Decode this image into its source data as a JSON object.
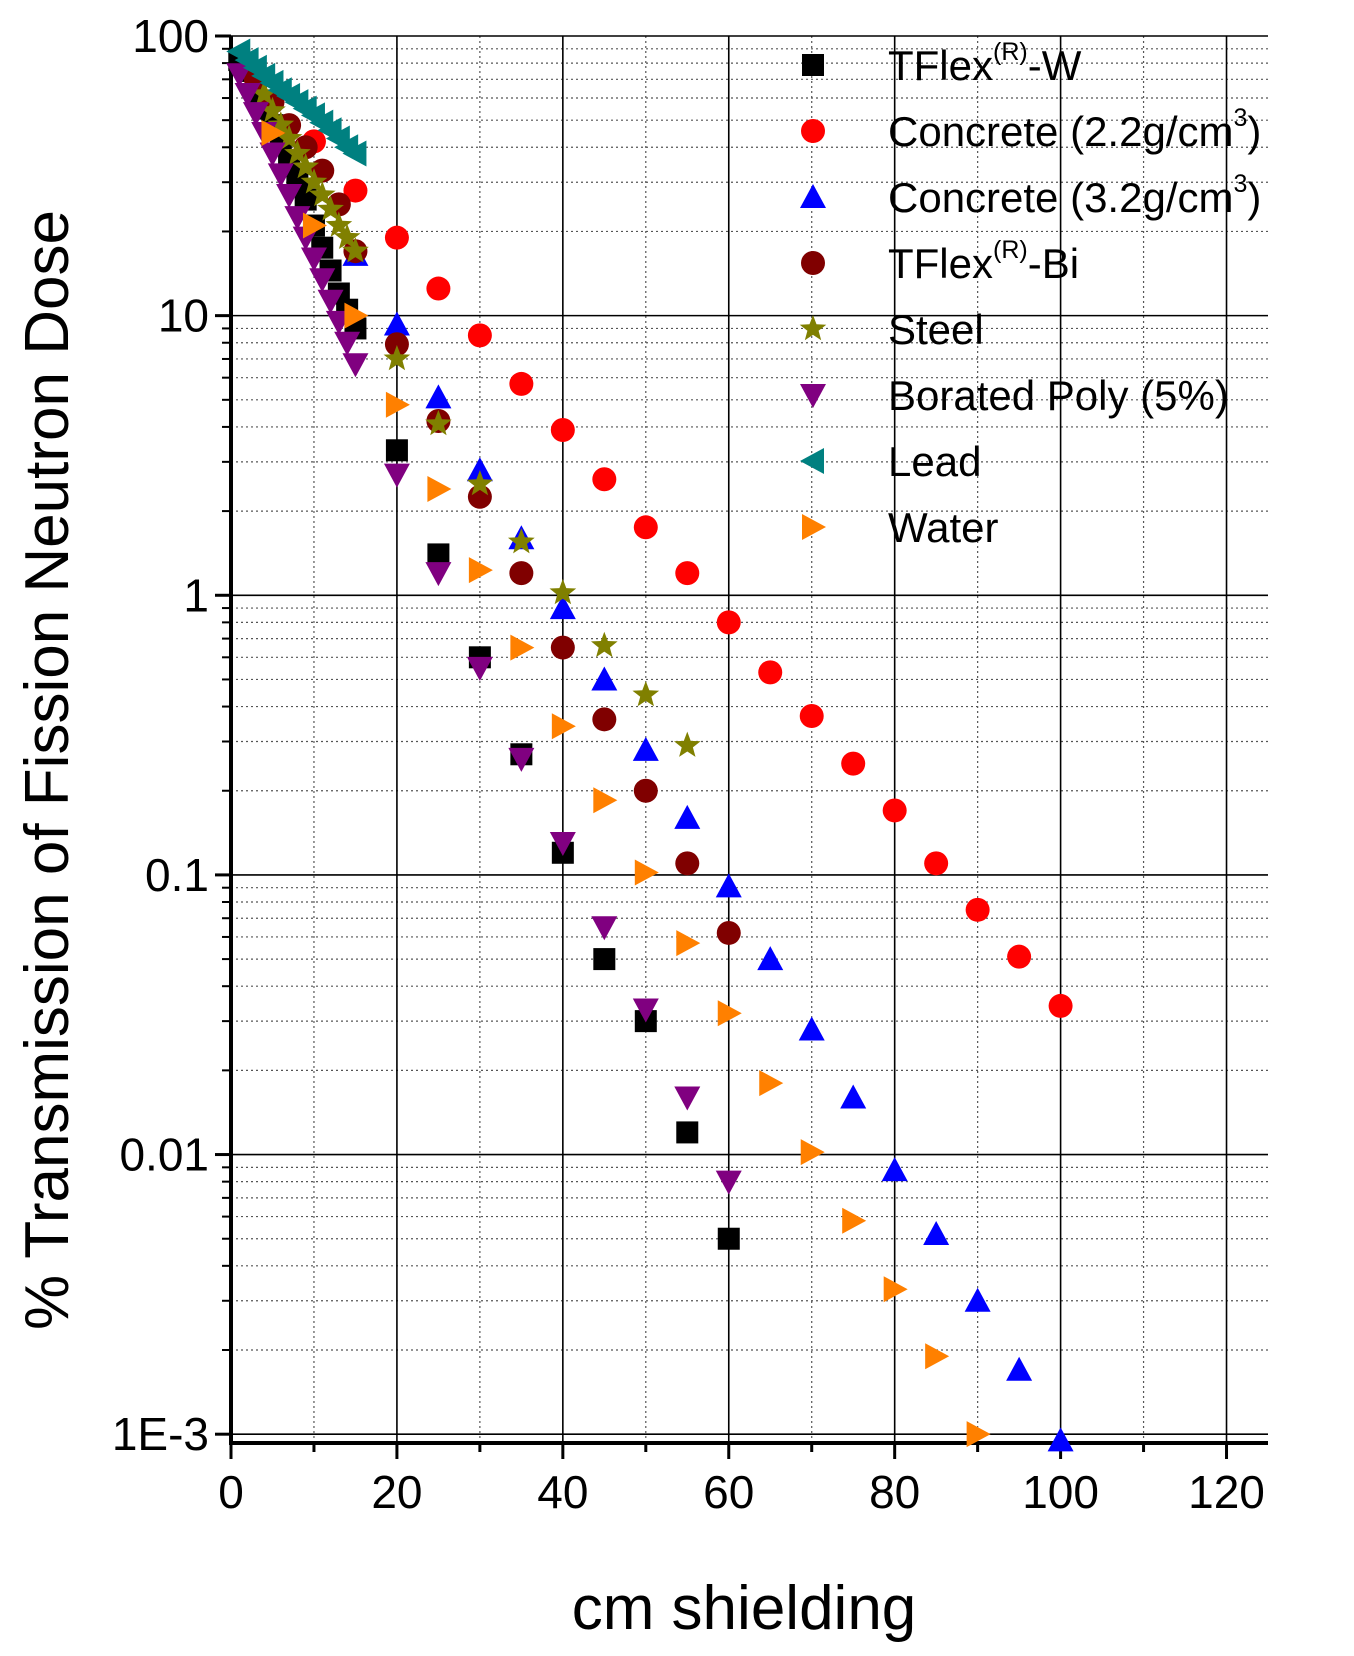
{
  "chart_data": {
    "type": "scatter",
    "title": "",
    "xlabel": "cm shielding",
    "ylabel": "% Transmission of Fission Neutron Dose",
    "xlim": [
      0,
      125
    ],
    "ylim": [
      0.00093,
      100
    ],
    "y_scale": "log",
    "x_ticks": [
      0,
      20,
      40,
      60,
      80,
      100,
      120
    ],
    "x_tick_labels": [
      "0",
      "20",
      "40",
      "60",
      "80",
      "100",
      "120"
    ],
    "y_ticks": [
      0.001,
      0.01,
      0.1,
      1,
      10,
      100
    ],
    "y_tick_labels": [
      "1E-3",
      "0.01",
      "0.1",
      "1",
      "10",
      "100"
    ],
    "grid": true,
    "legend_position": "top-right",
    "series": [
      {
        "name": "TFlex-W",
        "legend_prefix": "TFlex",
        "legend_sup": "(R)",
        "legend_suffix": "-W",
        "marker": "square",
        "color": "#000000",
        "x": [
          1,
          2,
          3,
          4,
          5,
          6,
          7,
          8,
          9,
          10,
          11,
          12,
          13,
          14,
          15,
          20,
          25,
          30,
          35,
          40,
          45,
          50,
          55,
          60
        ],
        "y": [
          82,
          75,
          63,
          55,
          48,
          42,
          36,
          31,
          26,
          21,
          17.5,
          14.5,
          12,
          10.5,
          9,
          3.3,
          1.4,
          0.6,
          0.27,
          0.12,
          0.05,
          0.03,
          0.012,
          0.005
        ]
      },
      {
        "name": "Concrete (2.2g/cm3)",
        "legend_prefix": "Concrete (2.2g/cm",
        "legend_sup": "3",
        "legend_suffix": ")",
        "marker": "circle",
        "color": "#ff0000",
        "x": [
          10,
          15,
          20,
          25,
          30,
          35,
          40,
          45,
          50,
          55,
          60,
          65,
          70,
          75,
          80,
          85,
          90,
          95,
          100
        ],
        "y": [
          42,
          28,
          19,
          12.5,
          8.5,
          5.7,
          3.9,
          2.6,
          1.75,
          1.2,
          0.8,
          0.53,
          0.37,
          0.25,
          0.17,
          0.11,
          0.075,
          0.051,
          0.034
        ]
      },
      {
        "name": "Concrete (3.2g/cm3)",
        "legend_prefix": "Concrete (3.2g/cm",
        "legend_sup": "3",
        "legend_suffix": ")",
        "marker": "triangle-up",
        "color": "#0000ff",
        "x": [
          15,
          20,
          25,
          30,
          35,
          40,
          45,
          50,
          55,
          60,
          65,
          70,
          75,
          80,
          85,
          90,
          95,
          100
        ],
        "y": [
          16.5,
          9.3,
          5.1,
          2.8,
          1.6,
          0.9,
          0.5,
          0.28,
          0.16,
          0.091,
          0.05,
          0.028,
          0.016,
          0.0088,
          0.0052,
          0.003,
          0.0017,
          0.00095
        ]
      },
      {
        "name": "TFlex-Bi",
        "legend_prefix": "TFlex",
        "legend_sup": "(R)",
        "legend_suffix": "-Bi",
        "marker": "circle",
        "color": "#800000",
        "x": [
          3,
          5,
          7,
          9,
          11,
          13,
          15,
          20,
          25,
          30,
          35,
          40,
          45,
          50,
          55,
          60
        ],
        "y": [
          70,
          58,
          48,
          40,
          33,
          25,
          17,
          7.9,
          4.2,
          2.25,
          1.2,
          0.65,
          0.36,
          0.2,
          0.11,
          0.062
        ]
      },
      {
        "name": "Steel",
        "legend_prefix": "Steel",
        "legend_sup": "",
        "legend_suffix": "",
        "marker": "star",
        "color": "#808000",
        "x": [
          4,
          5,
          6,
          7,
          8,
          9,
          10,
          11,
          12,
          13,
          14,
          15,
          20,
          25,
          30,
          35,
          40,
          45,
          50,
          55
        ],
        "y": [
          62,
          54,
          48,
          43,
          38,
          34,
          30,
          27,
          24,
          21,
          19,
          17,
          7,
          4.1,
          2.5,
          1.55,
          1.02,
          0.66,
          0.44,
          0.29
        ]
      },
      {
        "name": "Borated Poly (5%)",
        "legend_prefix": "Borated Poly (5%)",
        "legend_sup": "",
        "legend_suffix": "",
        "marker": "triangle-down",
        "color": "#800080",
        "x": [
          1,
          2,
          3,
          4,
          5,
          6,
          7,
          8,
          9,
          10,
          11,
          12,
          13,
          14,
          15,
          20,
          25,
          30,
          35,
          40,
          45,
          50,
          55,
          60
        ],
        "y": [
          73,
          62,
          53,
          45,
          38,
          32,
          27,
          22.5,
          19,
          16,
          13.5,
          11.3,
          9.5,
          8,
          6.7,
          2.7,
          1.2,
          0.55,
          0.26,
          0.13,
          0.065,
          0.033,
          0.016,
          0.008
        ]
      },
      {
        "name": "Lead",
        "legend_prefix": "Lead",
        "legend_sup": "",
        "legend_suffix": "",
        "marker": "triangle-left",
        "color": "#008080",
        "x": [
          1,
          2,
          3,
          4,
          5,
          6,
          7,
          8,
          9,
          10,
          11,
          12,
          13,
          14,
          15
        ],
        "y": [
          88,
          82,
          77,
          72,
          68,
          64,
          61,
          58,
          55,
          52,
          49,
          46,
          43,
          40,
          38
        ]
      },
      {
        "name": "Water",
        "legend_prefix": "Water",
        "legend_sup": "",
        "legend_suffix": "",
        "marker": "triangle-right",
        "color": "#ff8000",
        "x": [
          5,
          10,
          15,
          20,
          25,
          30,
          35,
          40,
          45,
          50,
          55,
          60,
          65,
          70,
          75,
          80,
          85,
          90
        ],
        "y": [
          45,
          21,
          10,
          4.8,
          2.4,
          1.23,
          0.65,
          0.34,
          0.185,
          0.102,
          0.057,
          0.032,
          0.018,
          0.0102,
          0.0058,
          0.0033,
          0.0019,
          0.001
        ]
      }
    ]
  }
}
